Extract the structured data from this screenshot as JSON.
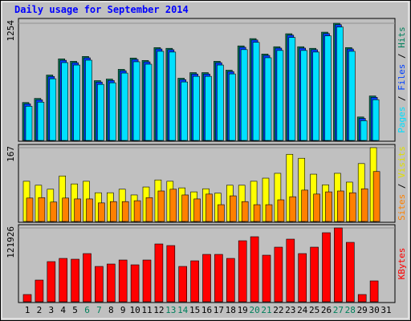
{
  "chart_data": [
    {
      "type": "bar",
      "title": "Daily usage for September 2014",
      "categories": [
        "1",
        "2",
        "3",
        "4",
        "5",
        "6",
        "7",
        "8",
        "9",
        "10",
        "11",
        "12",
        "13",
        "14",
        "15",
        "16",
        "17",
        "18",
        "19",
        "20",
        "21",
        "22",
        "23",
        "24",
        "25",
        "26",
        "27",
        "28",
        "29",
        "30",
        "31"
      ],
      "weekend_days": [
        "6",
        "7",
        "13",
        "14",
        "20",
        "21",
        "27",
        "28"
      ],
      "weekend_color": "#00805c",
      "ylim": [
        0,
        1254
      ],
      "yticks": [
        1254
      ],
      "series": [
        {
          "name": "Hits",
          "color": "#00805c",
          "values": [
            406,
            450,
            700,
            873,
            847,
            899,
            640,
            657,
            761,
            882,
            856,
            994,
            986,
            666,
            726,
            726,
            847,
            752,
            1012,
            1090,
            925,
            1003,
            1142,
            1003,
            986,
            1159,
            1254,
            994,
            251,
            476,
            0
          ]
        },
        {
          "name": "Files",
          "color": "#0040ff",
          "values": [
            391,
            435,
            685,
            858,
            832,
            884,
            625,
            642,
            746,
            867,
            841,
            979,
            971,
            651,
            711,
            711,
            832,
            737,
            997,
            1075,
            910,
            988,
            1127,
            988,
            971,
            1144,
            1239,
            979,
            236,
            461,
            0
          ]
        },
        {
          "name": "Pages",
          "color": "#00e0ff",
          "values": [
            366,
            410,
            660,
            833,
            807,
            859,
            600,
            617,
            721,
            842,
            816,
            954,
            946,
            626,
            686,
            686,
            807,
            712,
            972,
            1050,
            885,
            963,
            1102,
            963,
            946,
            1119,
            1214,
            954,
            211,
            436,
            0
          ]
        }
      ]
    },
    {
      "type": "bar",
      "ylim": [
        0,
        167
      ],
      "yticks": [
        167
      ],
      "series": [
        {
          "name": "Visits",
          "color": "#ffff00",
          "values": [
            91,
            82,
            73,
            103,
            85,
            91,
            65,
            65,
            73,
            60,
            78,
            94,
            91,
            76,
            67,
            74,
            64,
            82,
            82,
            91,
            98,
            109,
            152,
            143,
            107,
            83,
            109,
            89,
            131,
            167,
            0
          ]
        },
        {
          "name": "Sites",
          "color": "#ff8000",
          "values": [
            53,
            54,
            44,
            53,
            51,
            51,
            42,
            45,
            45,
            47,
            54,
            69,
            73,
            60,
            51,
            62,
            38,
            58,
            45,
            38,
            38,
            49,
            56,
            71,
            62,
            67,
            69,
            65,
            74,
            113,
            0
          ]
        }
      ]
    },
    {
      "type": "bar",
      "ylim": [
        0,
        121926
      ],
      "yticks": [
        121926
      ],
      "series": [
        {
          "name": "KBytes",
          "color": "#ff0000",
          "values": [
            11928,
            35782,
            66264,
            71565,
            70240,
            79517,
            58312,
            62288,
            68914,
            60963,
            68914,
            95420,
            92769,
            58312,
            67589,
            78192,
            78192,
            71565,
            100721,
            107348,
            76866,
            90119,
            103372,
            79517,
            90119,
            113975,
            121926,
            98071,
            11928,
            34457,
            0
          ]
        }
      ]
    }
  ]
}
